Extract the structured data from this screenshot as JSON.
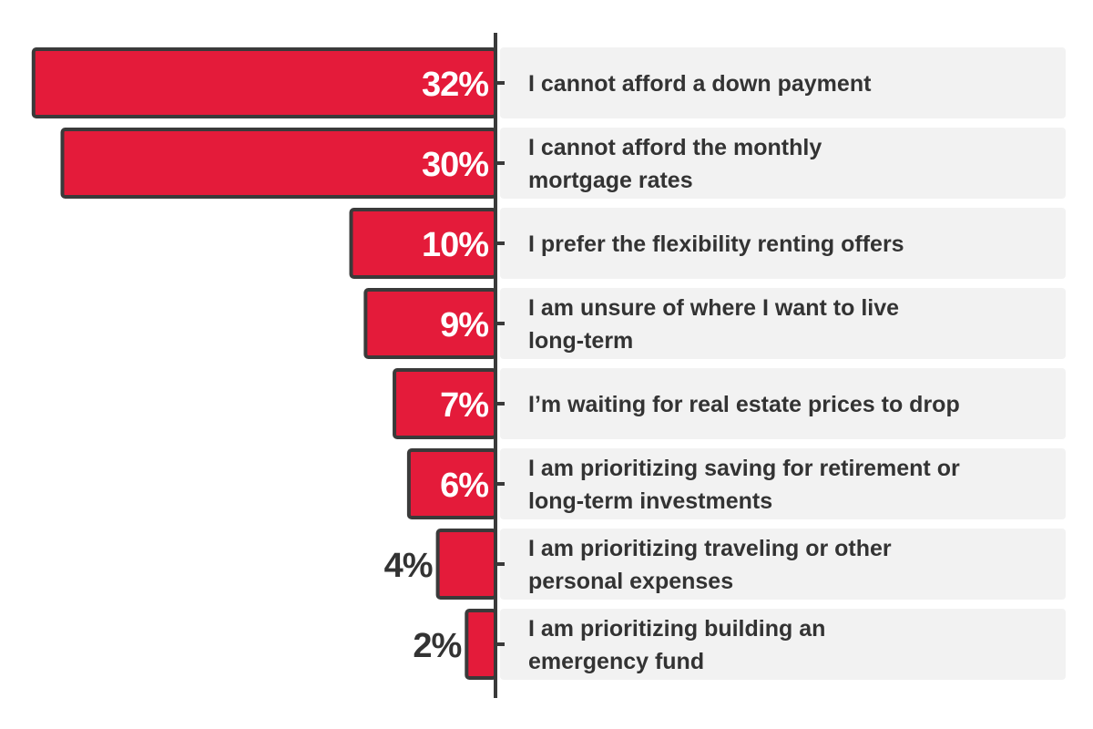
{
  "chart_data": {
    "type": "bar",
    "orientation": "horizontal",
    "categories": [
      [
        "I cannot afford a down payment"
      ],
      [
        "I cannot afford the monthly",
        "mortgage rates"
      ],
      [
        "I prefer the flexibility renting offers"
      ],
      [
        "I am unsure of where I want to live",
        "long-term"
      ],
      [
        "I’m waiting for real estate prices to drop"
      ],
      [
        "I am prioritizing saving for retirement or",
        "long-term investments"
      ],
      [
        "I am prioritizing traveling or other",
        "personal expenses"
      ],
      [
        "I am prioritizing building an",
        "emergency fund"
      ]
    ],
    "values": [
      32,
      30,
      10,
      9,
      7,
      6,
      4,
      2
    ],
    "value_labels": [
      "32%",
      "30%",
      "10%",
      "9%",
      "7%",
      "6%",
      "4%",
      "2%"
    ],
    "unit": "%",
    "grid": false,
    "legend": "none",
    "colors": {
      "bar_fill": "#E41B3A",
      "bar_stroke": "#3A3A3A",
      "axis": "#3A3A3A",
      "label_panel": "#F2F2F2",
      "label_text": "#333333",
      "value_text_inside": "#FFFFFF",
      "value_text_outside": "#333333"
    }
  }
}
